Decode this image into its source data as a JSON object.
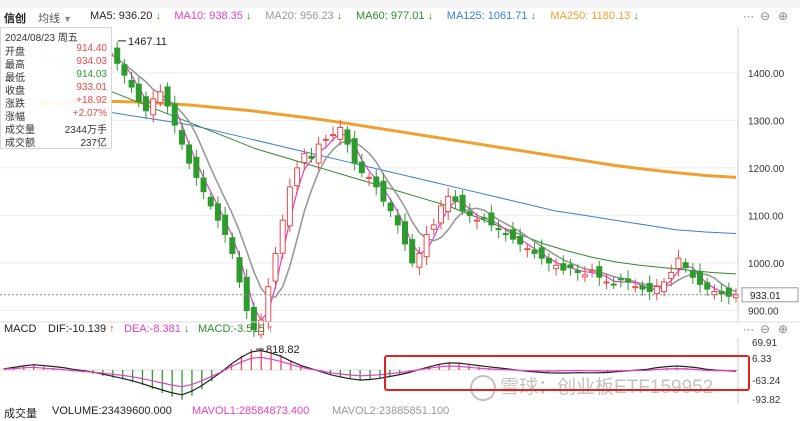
{
  "header": {
    "title": "信创",
    "mode_label": "均线",
    "ma_items": [
      {
        "label": "MA5: 936.20",
        "arrow": "↓",
        "color": "#222222"
      },
      {
        "label": "MA10: 938.35",
        "arrow": "↓",
        "color": "#e040c8"
      },
      {
        "label": "MA20: 956.23",
        "arrow": "↓",
        "color": "#999999"
      },
      {
        "label": "MA60: 977.01",
        "arrow": "↓",
        "color": "#2e8b2e"
      },
      {
        "label": "MA125: 1061.71",
        "arrow": "↓",
        "color": "#3b7dd8"
      },
      {
        "label": "MA250: 1180.13",
        "arrow": "↓",
        "color": "#f0a030"
      }
    ]
  },
  "tooltip": {
    "date": "2024/08/23 周五",
    "rows": [
      {
        "key": "开盘",
        "value": "914.40",
        "color": "#e84b4b"
      },
      {
        "key": "最高",
        "value": "934.03",
        "color": "#e84b4b"
      },
      {
        "key": "最低",
        "value": "914.03",
        "color": "#2e9b2e"
      },
      {
        "key": "收盘",
        "value": "933.01",
        "color": "#e84b4b"
      },
      {
        "key": "涨跌",
        "value": "+18.92",
        "color": "#e84b4b"
      },
      {
        "key": "涨幅",
        "value": "+2.07%",
        "color": "#e84b4b"
      },
      {
        "key": "成交量",
        "value": "2344万手",
        "color": "#333333"
      },
      {
        "key": "成交额",
        "value": "237亿",
        "color": "#333333"
      }
    ]
  },
  "macd_header": {
    "title": "MACD",
    "dif": "DIF:-10.139",
    "dif_arrow": "↑",
    "dea": "DEA:-8.381",
    "dea_arrow": "↓",
    "macd": "MACD:-3.515",
    "macd_arrow": "↑"
  },
  "volume_header": {
    "title": "成交量",
    "volume": "VOLUME:23439600.000",
    "mavol1": "MAVOL1:28584873.400",
    "mavol2": "MAVOL2:23885851.100"
  },
  "watermark": "雪球：创业板ETF159952",
  "chart_data": {
    "type": "candlestick",
    "y_ticks": [
      900,
      1000,
      1100,
      1200,
      1300,
      1400
    ],
    "y_tick_labels": [
      "900.00",
      "1000.00",
      "1100.00",
      "1200.00",
      "1300.00",
      "1400.00"
    ],
    "ylim": [
      880,
      1490
    ],
    "current_price_label": "933.01",
    "current_price": 933.01,
    "annotations": [
      {
        "text": "1467.11",
        "value": 1467.11
      },
      {
        "text": "818.82",
        "value": 818.82
      }
    ],
    "close_path": [
      1440,
      1420,
      1395,
      1370,
      1340,
      1320,
      1345,
      1360,
      1330,
      1290,
      1250,
      1210,
      1180,
      1150,
      1120,
      1090,
      1060,
      1020,
      960,
      900,
      860,
      880,
      950,
      1020,
      1090,
      1160,
      1200,
      1230,
      1220,
      1250,
      1260,
      1270,
      1285,
      1250,
      1210,
      1190,
      1180,
      1160,
      1130,
      1110,
      1080,
      1040,
      1000,
      1020,
      1060,
      1080,
      1120,
      1140,
      1130,
      1110,
      1100,
      1090,
      1095,
      1080,
      1070,
      1060,
      1050,
      1040,
      1030,
      1020,
      1010,
      1000,
      995,
      985,
      990,
      980,
      975,
      985,
      970,
      960,
      955,
      965,
      960,
      950,
      945,
      940,
      950,
      960,
      980,
      1010,
      990,
      970,
      955,
      945,
      940,
      935,
      930,
      933
    ],
    "series": [
      {
        "name": "MA125",
        "color": "#3b7dd8",
        "values": [
          1340,
          1330,
          1320,
          1310,
          1300,
          1290,
          1275,
          1260,
          1245,
          1230,
          1215,
          1200,
          1185,
          1170,
          1155,
          1140,
          1125,
          1110,
          1100,
          1090,
          1080,
          1070,
          1065,
          1062
        ]
      },
      {
        "name": "MA250",
        "color": "#f0a030",
        "values": [
          1335,
          1338,
          1340,
          1339,
          1336,
          1332,
          1326,
          1320,
          1312,
          1304,
          1295,
          1285,
          1275,
          1265,
          1255,
          1245,
          1235,
          1225,
          1215,
          1205,
          1197,
          1190,
          1184,
          1180
        ]
      },
      {
        "name": "MA60",
        "color": "#2e8b2e",
        "values": [
          1440,
          1410,
          1380,
          1360,
          1340,
          1320,
          1300,
          1280,
          1260,
          1240,
          1225,
          1210,
          1195,
          1180,
          1165,
          1150,
          1135,
          1120,
          1100,
          1080,
          1060,
          1040,
          1025,
          1012,
          1002,
          995,
          990,
          985,
          980,
          977
        ]
      }
    ],
    "macd_axis_labels": [
      "69.91",
      "6.33",
      "-63.24",
      "-93.82"
    ],
    "macd_hist": [
      5,
      8,
      12,
      15,
      10,
      6,
      2,
      -4,
      -8,
      -12,
      -18,
      -24,
      -30,
      -38,
      -48,
      -60,
      -72,
      -84,
      -93,
      -80,
      -60,
      -35,
      -10,
      20,
      45,
      65,
      70,
      60,
      48,
      30,
      15,
      5,
      -5,
      -15,
      -22,
      -28,
      -32,
      -30,
      -26,
      -20,
      -14,
      -8,
      2,
      10,
      18,
      22,
      20,
      15,
      10,
      6,
      3,
      1,
      -2,
      -4,
      -5,
      -6,
      -5,
      -4,
      -3,
      -4,
      -5,
      -6,
      -5,
      -4,
      -3,
      -2,
      3,
      6,
      8,
      6,
      3,
      -2,
      -4,
      -3,
      -3.5
    ]
  }
}
